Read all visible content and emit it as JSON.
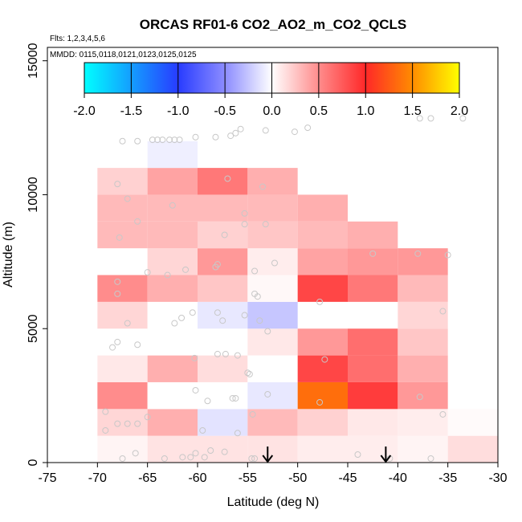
{
  "chart_data": {
    "type": "heatmap",
    "title": "ORCAS RF01-6 CO2_AO2_m_CO2_QCLS",
    "flights_note": "Flts: 1,2,3,4,5,6",
    "dates_note": "MMDD: 0115,0118,0121,0123,0125,0125",
    "xlabel": "Latitude (deg N)",
    "ylabel": "Altitude (m)",
    "xlim": [
      -75,
      -30
    ],
    "ylim": [
      0,
      15500
    ],
    "xticks": [
      -75,
      -70,
      -65,
      -60,
      -55,
      -50,
      -45,
      -40,
      -35,
      -30
    ],
    "yticks": [
      0,
      5000,
      10000,
      15000
    ],
    "colorbar": {
      "range": [
        -2.0,
        2.0
      ],
      "ticks": [
        "-2.0",
        "-1.5",
        "-1.0",
        "-0.5",
        "0.0",
        "0.5",
        "1.0",
        "1.5",
        "2.0"
      ]
    },
    "bin_edges": {
      "lat": [
        -70,
        -65,
        -60,
        -55,
        -50,
        -45,
        -40,
        -35
      ],
      "alt": [
        0,
        1000,
        2000,
        3000,
        4000,
        5000,
        6000,
        7000,
        8000,
        9000,
        10000,
        11000,
        12000
      ]
    },
    "cells": [
      {
        "lat": -70,
        "alt": 0,
        "v": 0.05
      },
      {
        "lat": -65,
        "alt": 0,
        "v": 0.12
      },
      {
        "lat": -60,
        "alt": 0,
        "v": 0.12
      },
      {
        "lat": -55,
        "alt": 0,
        "v": 0.12
      },
      {
        "lat": -50,
        "alt": 0,
        "v": 0.08
      },
      {
        "lat": -45,
        "alt": 0,
        "v": 0.08
      },
      {
        "lat": -40,
        "alt": 0,
        "v": 0.05
      },
      {
        "lat": -35,
        "alt": 0,
        "v": 0.15
      },
      {
        "lat": -70,
        "alt": 1000,
        "v": 0.18
      },
      {
        "lat": -65,
        "alt": 1000,
        "v": 0.35
      },
      {
        "lat": -60,
        "alt": 1000,
        "v": -0.12
      },
      {
        "lat": -55,
        "alt": 1000,
        "v": 0.3
      },
      {
        "lat": -50,
        "alt": 1000,
        "v": 0.2
      },
      {
        "lat": -45,
        "alt": 1000,
        "v": 0.1
      },
      {
        "lat": -40,
        "alt": 1000,
        "v": 0.08
      },
      {
        "lat": -35,
        "alt": 1000,
        "v": 0.02
      },
      {
        "lat": -70,
        "alt": 2000,
        "v": 0.5
      },
      {
        "lat": -65,
        "alt": 2000,
        "v": 0.0
      },
      {
        "lat": -60,
        "alt": 2000,
        "v": 0.0
      },
      {
        "lat": -55,
        "alt": 2000,
        "v": -0.1
      },
      {
        "lat": -50,
        "alt": 2000,
        "v": 1.35
      },
      {
        "lat": -45,
        "alt": 2000,
        "v": 0.9
      },
      {
        "lat": -40,
        "alt": 2000,
        "v": 0.45
      },
      {
        "lat": -70,
        "alt": 3000,
        "v": 0.1
      },
      {
        "lat": -65,
        "alt": 3000,
        "v": 0.35
      },
      {
        "lat": -60,
        "alt": 3000,
        "v": 0.15
      },
      {
        "lat": -55,
        "alt": 3000,
        "v": 0.0
      },
      {
        "lat": -50,
        "alt": 3000,
        "v": 0.85
      },
      {
        "lat": -45,
        "alt": 3000,
        "v": 0.65
      },
      {
        "lat": -40,
        "alt": 3000,
        "v": 0.35
      },
      {
        "lat": -70,
        "alt": 4000,
        "v": 0.0
      },
      {
        "lat": -65,
        "alt": 4000,
        "v": 0.0
      },
      {
        "lat": -60,
        "alt": 4000,
        "v": 0.0
      },
      {
        "lat": -55,
        "alt": 4000,
        "v": 0.1
      },
      {
        "lat": -50,
        "alt": 4000,
        "v": 0.45
      },
      {
        "lat": -45,
        "alt": 4000,
        "v": 0.65
      },
      {
        "lat": -40,
        "alt": 4000,
        "v": 0.25
      },
      {
        "lat": -70,
        "alt": 5000,
        "v": 0.18
      },
      {
        "lat": -65,
        "alt": 5000,
        "v": 0.0
      },
      {
        "lat": -60,
        "alt": 5000,
        "v": -0.1
      },
      {
        "lat": -55,
        "alt": 5000,
        "v": -0.25
      },
      {
        "lat": -40,
        "alt": 5000,
        "v": 0.18
      },
      {
        "lat": -70,
        "alt": 6000,
        "v": 0.5
      },
      {
        "lat": -65,
        "alt": 6000,
        "v": 0.35
      },
      {
        "lat": -60,
        "alt": 6000,
        "v": 0.25
      },
      {
        "lat": -55,
        "alt": 6000,
        "v": 0.03
      },
      {
        "lat": -50,
        "alt": 6000,
        "v": 0.85
      },
      {
        "lat": -45,
        "alt": 6000,
        "v": 0.6
      },
      {
        "lat": -40,
        "alt": 6000,
        "v": 0.3
      },
      {
        "lat": -65,
        "alt": 7000,
        "v": 0.18
      },
      {
        "lat": -60,
        "alt": 7000,
        "v": 0.45
      },
      {
        "lat": -55,
        "alt": 7000,
        "v": 0.08
      },
      {
        "lat": -50,
        "alt": 7000,
        "v": 0.4
      },
      {
        "lat": -45,
        "alt": 7000,
        "v": 0.45
      },
      {
        "lat": -40,
        "alt": 7000,
        "v": 0.45
      },
      {
        "lat": -70,
        "alt": 8000,
        "v": 0.3
      },
      {
        "lat": -65,
        "alt": 8000,
        "v": 0.3
      },
      {
        "lat": -60,
        "alt": 8000,
        "v": 0.2
      },
      {
        "lat": -55,
        "alt": 8000,
        "v": 0.25
      },
      {
        "lat": -50,
        "alt": 8000,
        "v": 0.3
      },
      {
        "lat": -45,
        "alt": 8000,
        "v": 0.35
      },
      {
        "lat": -70,
        "alt": 9000,
        "v": 0.3
      },
      {
        "lat": -65,
        "alt": 9000,
        "v": 0.3
      },
      {
        "lat": -60,
        "alt": 9000,
        "v": 0.3
      },
      {
        "lat": -55,
        "alt": 9000,
        "v": 0.3
      },
      {
        "lat": -50,
        "alt": 9000,
        "v": 0.35
      },
      {
        "lat": -70,
        "alt": 10000,
        "v": 0.2
      },
      {
        "lat": -65,
        "alt": 10000,
        "v": 0.4
      },
      {
        "lat": -60,
        "alt": 10000,
        "v": 0.6
      },
      {
        "lat": -55,
        "alt": 10000,
        "v": 0.35
      },
      {
        "lat": -65,
        "alt": 11000,
        "v": -0.07
      }
    ],
    "scatter": [
      {
        "lat": -67.5,
        "alt": 150
      },
      {
        "lat": -66.2,
        "alt": 350
      },
      {
        "lat": -63.3,
        "alt": 150
      },
      {
        "lat": -61.5,
        "alt": 200
      },
      {
        "lat": -60.7,
        "alt": 200
      },
      {
        "lat": -60.2,
        "alt": 350
      },
      {
        "lat": -59.3,
        "alt": 200
      },
      {
        "lat": -58.7,
        "alt": 450
      },
      {
        "lat": -57.3,
        "alt": 400
      },
      {
        "lat": -54.6,
        "alt": 150
      },
      {
        "lat": -54.3,
        "alt": 150
      },
      {
        "lat": -44.0,
        "alt": 300
      },
      {
        "lat": -40.8,
        "alt": 150
      },
      {
        "lat": -36.7,
        "alt": 150
      },
      {
        "lat": -69.2,
        "alt": 1200
      },
      {
        "lat": -68.0,
        "alt": 1450
      },
      {
        "lat": -67.0,
        "alt": 1450
      },
      {
        "lat": -66.0,
        "alt": 1450
      },
      {
        "lat": -65.0,
        "alt": 1700
      },
      {
        "lat": -59.5,
        "alt": 1200
      },
      {
        "lat": -56.0,
        "alt": 1100
      },
      {
        "lat": -54.5,
        "alt": 1800
      },
      {
        "lat": -35.5,
        "alt": 1800
      },
      {
        "lat": -69.2,
        "alt": 1900
      },
      {
        "lat": -60.2,
        "alt": 2700
      },
      {
        "lat": -59.0,
        "alt": 2300
      },
      {
        "lat": -56.5,
        "alt": 2400
      },
      {
        "lat": -56.2,
        "alt": 2400
      },
      {
        "lat": -53.0,
        "alt": 2550
      },
      {
        "lat": -47.8,
        "alt": 2250
      },
      {
        "lat": -37.8,
        "alt": 2450
      },
      {
        "lat": -58.0,
        "alt": 4050
      },
      {
        "lat": -57.2,
        "alt": 4050
      },
      {
        "lat": -55.0,
        "alt": 3350
      },
      {
        "lat": -54.8,
        "alt": 3300
      },
      {
        "lat": -60.3,
        "alt": 3900
      },
      {
        "lat": -47.3,
        "alt": 3850
      },
      {
        "lat": -68.0,
        "alt": 4500
      },
      {
        "lat": -68.5,
        "alt": 4300
      },
      {
        "lat": -66.0,
        "alt": 4400
      },
      {
        "lat": -56.0,
        "alt": 4000
      },
      {
        "lat": -53.0,
        "alt": 4900
      },
      {
        "lat": -67.0,
        "alt": 5200
      },
      {
        "lat": -62.3,
        "alt": 5200
      },
      {
        "lat": -61.6,
        "alt": 5400
      },
      {
        "lat": -60.5,
        "alt": 5600
      },
      {
        "lat": -58.0,
        "alt": 5600
      },
      {
        "lat": -57.5,
        "alt": 5300
      },
      {
        "lat": -55.3,
        "alt": 5500
      },
      {
        "lat": -53.8,
        "alt": 5300
      },
      {
        "lat": -47.8,
        "alt": 6000
      },
      {
        "lat": -35.5,
        "alt": 5650
      },
      {
        "lat": -68.0,
        "alt": 6300
      },
      {
        "lat": -68.0,
        "alt": 6750
      },
      {
        "lat": -54.3,
        "alt": 6300
      },
      {
        "lat": -54.0,
        "alt": 6200
      },
      {
        "lat": -65.0,
        "alt": 7100
      },
      {
        "lat": -63.0,
        "alt": 7000
      },
      {
        "lat": -61.2,
        "alt": 7200
      },
      {
        "lat": -58.0,
        "alt": 7400
      },
      {
        "lat": -58.2,
        "alt": 7300
      },
      {
        "lat": -54.3,
        "alt": 7150
      },
      {
        "lat": -52.3,
        "alt": 7450
      },
      {
        "lat": -38.0,
        "alt": 7800
      },
      {
        "lat": -35.0,
        "alt": 7750
      },
      {
        "lat": -42.5,
        "alt": 7800
      },
      {
        "lat": -67.8,
        "alt": 8400
      },
      {
        "lat": -57.3,
        "alt": 8500
      },
      {
        "lat": -55.3,
        "alt": 8900
      },
      {
        "lat": -53.2,
        "alt": 8900
      },
      {
        "lat": -66.0,
        "alt": 9000
      },
      {
        "lat": -62.5,
        "alt": 9600
      },
      {
        "lat": -55.3,
        "alt": 9300
      },
      {
        "lat": -67.0,
        "alt": 9850
      },
      {
        "lat": -68.0,
        "alt": 10400
      },
      {
        "lat": -57.0,
        "alt": 10600
      },
      {
        "lat": -53.5,
        "alt": 10300
      },
      {
        "lat": -67.5,
        "alt": 12000
      },
      {
        "lat": -66.0,
        "alt": 12000
      },
      {
        "lat": -64.5,
        "alt": 12050
      },
      {
        "lat": -64.0,
        "alt": 12050
      },
      {
        "lat": -63.5,
        "alt": 12050
      },
      {
        "lat": -62.8,
        "alt": 12050
      },
      {
        "lat": -62.3,
        "alt": 12050
      },
      {
        "lat": -61.8,
        "alt": 12050
      },
      {
        "lat": -60.2,
        "alt": 12150
      },
      {
        "lat": -58.2,
        "alt": 12150
      },
      {
        "lat": -56.7,
        "alt": 12200
      },
      {
        "lat": -56.2,
        "alt": 12300
      },
      {
        "lat": -55.7,
        "alt": 12450
      },
      {
        "lat": -53.2,
        "alt": 12400
      },
      {
        "lat": -50.3,
        "alt": 12350
      },
      {
        "lat": -49.0,
        "alt": 12500
      },
      {
        "lat": -37.8,
        "alt": 12850
      },
      {
        "lat": -36.7,
        "alt": 12850
      },
      {
        "lat": -33.5,
        "alt": 12850
      }
    ],
    "arrows": [
      {
        "lat": -53.0,
        "alt_top": 600,
        "alt_bottom": 0
      },
      {
        "lat": -41.2,
        "alt_top": 600,
        "alt_bottom": 0
      }
    ]
  }
}
